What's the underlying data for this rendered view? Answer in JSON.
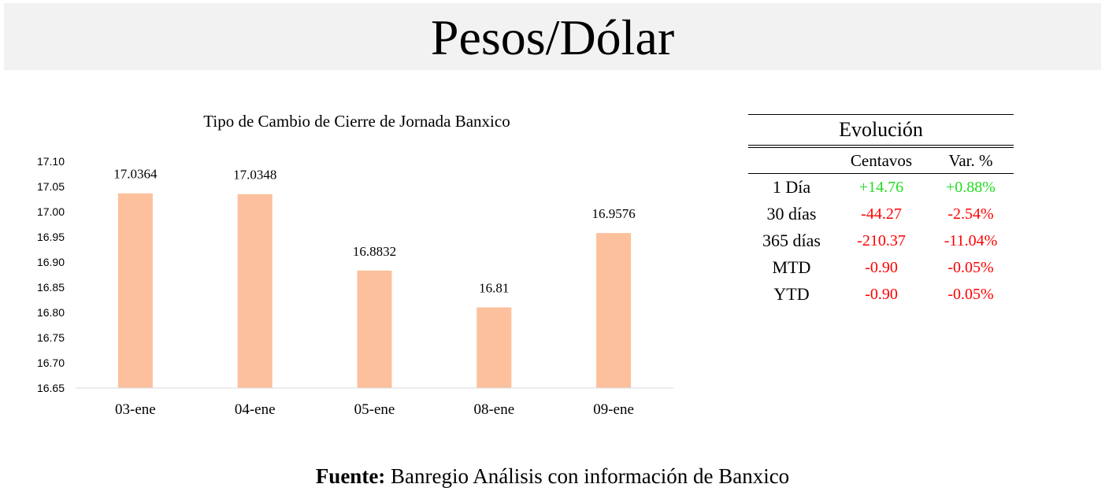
{
  "header": {
    "title": "Pesos/Dólar"
  },
  "chart_data": {
    "type": "bar",
    "title": "Tipo de Cambio de Cierre de Jornada Banxico",
    "categories": [
      "03-ene",
      "04-ene",
      "05-ene",
      "08-ene",
      "09-ene"
    ],
    "values": [
      17.0364,
      17.0348,
      16.8832,
      16.81,
      16.9576
    ],
    "data_labels": [
      "17.0364",
      "17.0348",
      "16.8832",
      "16.81",
      "16.9576"
    ],
    "xlabel": "",
    "ylabel": "",
    "ylim": [
      16.65,
      17.1
    ],
    "yticks": [
      "17.10",
      "17.05",
      "17.00",
      "16.95",
      "16.90",
      "16.85",
      "16.80",
      "16.75",
      "16.70",
      "16.65"
    ],
    "grid": false,
    "legend": "none",
    "bar_color": "#fcc09c"
  },
  "evolucion": {
    "title": "Evolución",
    "headers": [
      "",
      "Centavos",
      "Var. %"
    ],
    "rows": [
      {
        "label": "1 Día",
        "centavos": "+14.76",
        "var": "+0.88%",
        "color": "#22dd22"
      },
      {
        "label": "30 días",
        "centavos": "-44.27",
        "var": "-2.54%",
        "color": "#ff0000"
      },
      {
        "label": "365 días",
        "centavos": "-210.37",
        "var": "-11.04%",
        "color": "#ff0000"
      },
      {
        "label": "MTD",
        "centavos": "-0.90",
        "var": "-0.05%",
        "color": "#ff0000"
      },
      {
        "label": "YTD",
        "centavos": "-0.90",
        "var": "-0.05%",
        "color": "#ff0000"
      }
    ]
  },
  "footer": {
    "bold": "Fuente:",
    "text": " Banregio Análisis con información de Banxico"
  }
}
